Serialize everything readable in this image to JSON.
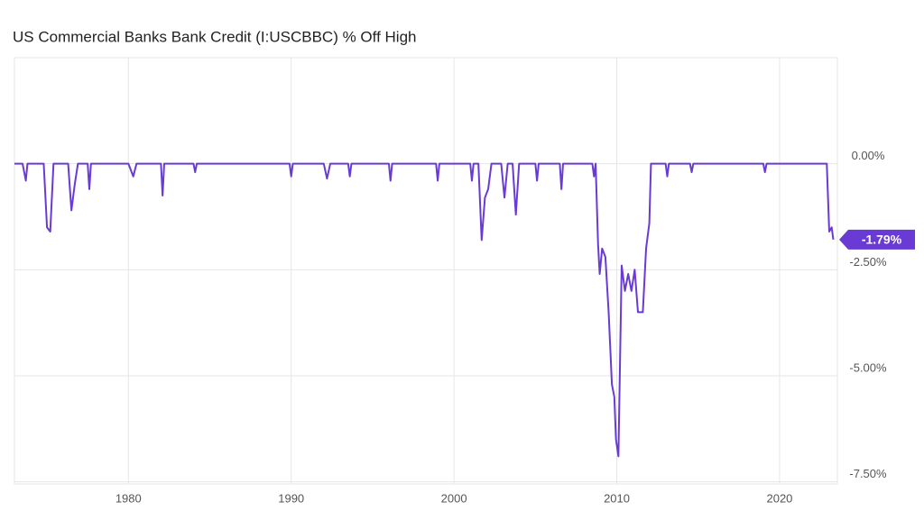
{
  "chart_data": {
    "type": "line",
    "title": "US Commercial Banks Bank Credit (I:USCBBC) % Off High",
    "x": [
      1973.0,
      1973.5,
      1973.7,
      1973.8,
      1974.8,
      1975.0,
      1975.2,
      1975.4,
      1976.3,
      1976.5,
      1976.7,
      1976.9,
      1977.5,
      1977.6,
      1977.7,
      1980.0,
      1980.3,
      1980.5,
      1982.0,
      1982.1,
      1982.2,
      1984.0,
      1984.1,
      1984.2,
      1989.9,
      1990.0,
      1990.1,
      1992.0,
      1992.2,
      1992.4,
      1993.5,
      1993.6,
      1993.7,
      1996.0,
      1996.1,
      1996.2,
      1998.9,
      1999.0,
      1999.1,
      2001.0,
      2001.1,
      2001.2,
      2001.5,
      2001.7,
      2001.9,
      2002.1,
      2002.3,
      2002.9,
      2003.1,
      2003.3,
      2003.6,
      2003.8,
      2004.0,
      2005.0,
      2005.1,
      2005.2,
      2006.5,
      2006.6,
      2006.7,
      2008.5,
      2008.6,
      2008.7,
      2008.85,
      2008.95,
      2009.1,
      2009.3,
      2009.5,
      2009.7,
      2009.85,
      2009.95,
      2010.1,
      2010.3,
      2010.5,
      2010.7,
      2010.9,
      2011.1,
      2011.3,
      2011.6,
      2011.8,
      2012.0,
      2012.1,
      2013.0,
      2013.1,
      2013.2,
      2014.5,
      2014.6,
      2014.7,
      2019.0,
      2019.1,
      2019.2,
      2022.9,
      2023.05,
      2023.2,
      2023.3
    ],
    "series": [
      {
        "name": "US Commercial Banks Bank Credit % Off High",
        "color": "#6a3bd4",
        "values": [
          0,
          0,
          -0.4,
          0,
          0,
          -1.5,
          -1.6,
          0,
          0,
          -1.1,
          -0.5,
          0,
          0,
          -0.6,
          0,
          0,
          -0.3,
          0,
          0,
          -0.75,
          0,
          0,
          -0.2,
          0,
          0,
          -0.3,
          0,
          0,
          -0.35,
          0,
          0,
          -0.3,
          0,
          0,
          -0.4,
          0,
          0,
          -0.4,
          0,
          0,
          -0.4,
          0,
          0,
          -1.8,
          -0.8,
          -0.6,
          0,
          0,
          -0.8,
          0,
          0,
          -1.2,
          0,
          0,
          -0.4,
          0,
          0,
          -0.6,
          0,
          0,
          -0.3,
          0,
          -1.9,
          -2.6,
          -2.0,
          -2.2,
          -3.5,
          -5.2,
          -5.5,
          -6.5,
          -6.9,
          -2.4,
          -3.0,
          -2.6,
          -3.0,
          -2.5,
          -3.5,
          -3.5,
          -2.0,
          -1.4,
          0,
          0,
          -0.3,
          0,
          0,
          -0.2,
          0,
          0,
          -0.2,
          0,
          0,
          -1.6,
          -1.5,
          -1.79
        ]
      }
    ],
    "last_label": "-1.79%",
    "xlim": [
      1973.0,
      2023.55
    ],
    "xticks": [
      1980,
      1990,
      2000,
      2010,
      2020
    ],
    "ylim": [
      -7.55,
      2.5
    ],
    "yticks": [
      {
        "value": 0,
        "label": "0.00%"
      },
      {
        "value": -2.5,
        "label": "-2.50%"
      },
      {
        "value": -5,
        "label": "-5.00%"
      },
      {
        "value": -7.5,
        "label": "-7.50%"
      }
    ],
    "grid": true
  }
}
